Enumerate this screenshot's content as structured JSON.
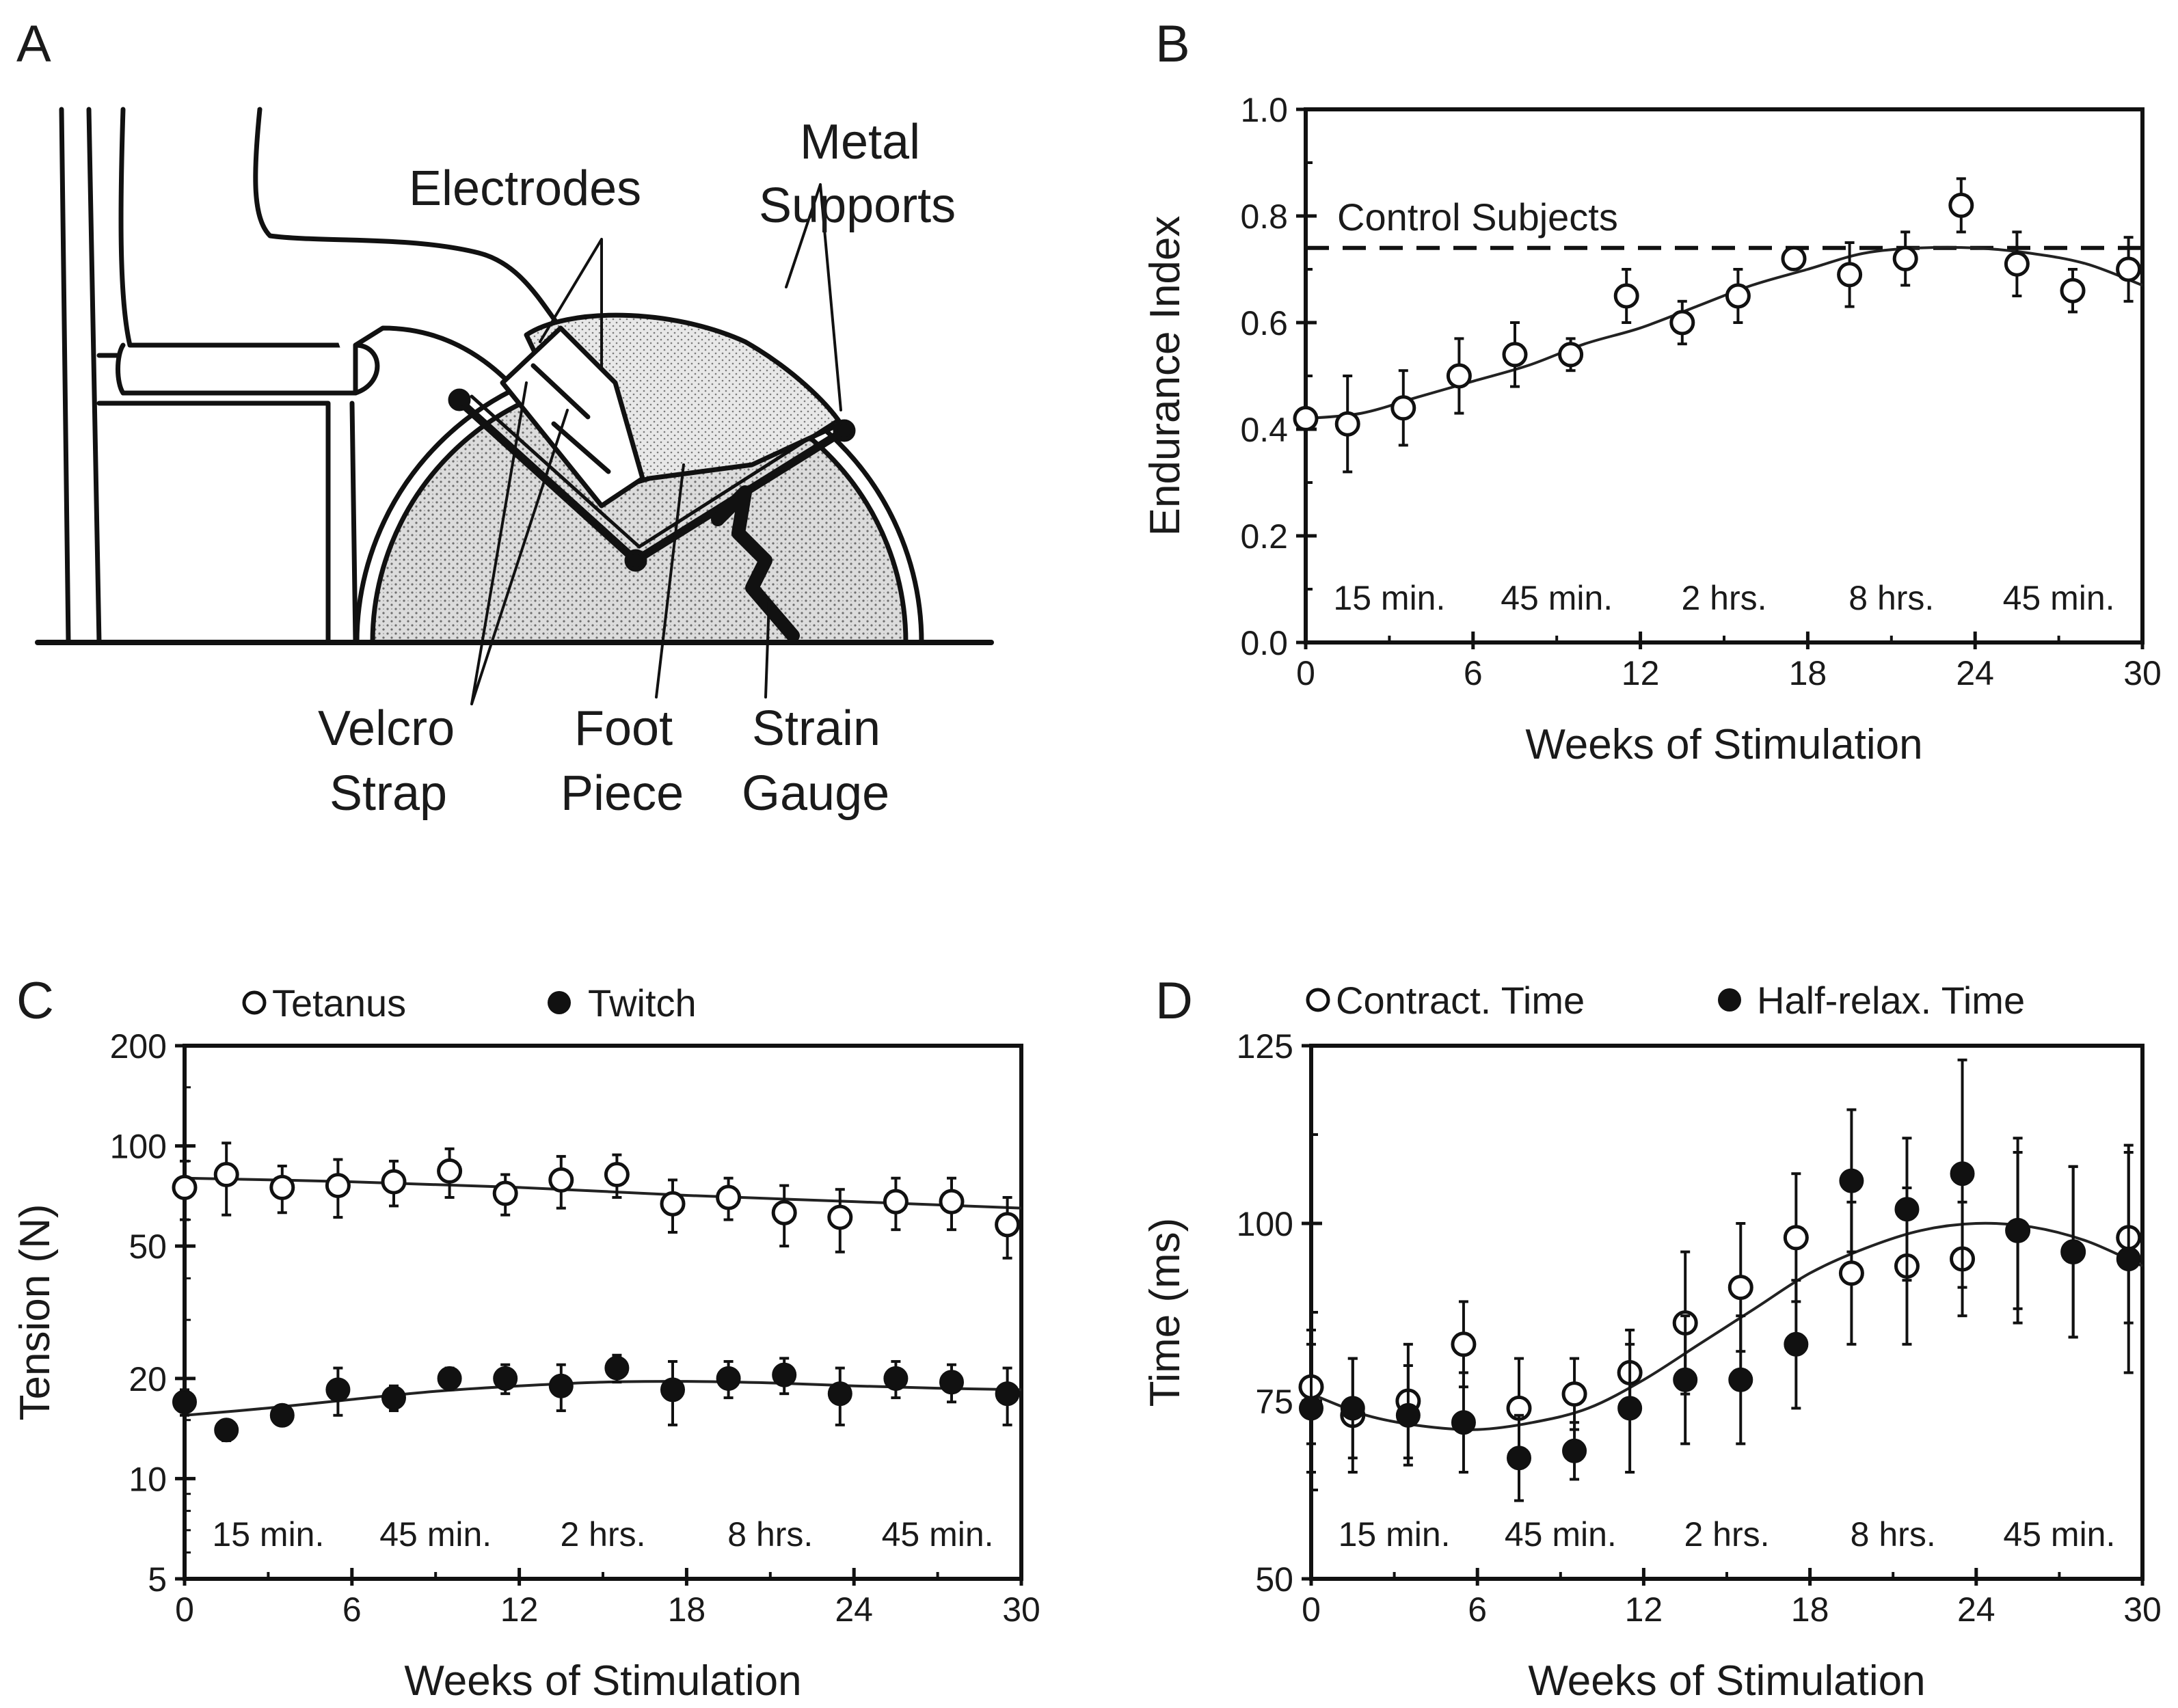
{
  "panel_a": {
    "letter": "A",
    "labels": {
      "metal_1": "Metal",
      "metal_2": "Supports",
      "electrodes": "Electrodes",
      "velcro_1": "Velcro",
      "velcro_2": "Strap",
      "foot_1": "Foot",
      "foot_2": "Piece",
      "strain_1": "Strain",
      "strain_2": "Gauge"
    }
  },
  "chart_data": [
    {
      "panel": "B",
      "type": "scatter",
      "xlabel": "Weeks of Stimulation",
      "ylabel": "Endurance Index",
      "xlim": [
        0,
        30
      ],
      "ylim": [
        0.0,
        1.0
      ],
      "xticks": [
        "0",
        "6",
        "12",
        "18",
        "24",
        "30"
      ],
      "yticks": [
        "0.0",
        "0.2",
        "0.4",
        "0.6",
        "0.8",
        "1.0"
      ],
      "phases": [
        "15 min.",
        "45 min.",
        "2 hrs.",
        "8 hrs.",
        "45 min."
      ],
      "reference": {
        "label": "Control Subjects",
        "y": 0.74
      },
      "series": [
        {
          "name": "Endurance Index",
          "marker": "open",
          "x": [
            0,
            1.5,
            3.5,
            5.5,
            7.5,
            9.5,
            11.5,
            13.5,
            15.5,
            17.5,
            19.5,
            21.5,
            23.5,
            25.5,
            27.5,
            29.5
          ],
          "y": [
            0.42,
            0.41,
            0.44,
            0.5,
            0.54,
            0.54,
            0.65,
            0.6,
            0.65,
            0.72,
            0.69,
            0.72,
            0.82,
            0.71,
            0.66,
            0.7
          ],
          "err": [
            0,
            0.09,
            0.07,
            0.07,
            0.06,
            0.03,
            0.05,
            0.04,
            0.05,
            0,
            0.06,
            0.05,
            0.05,
            0.06,
            0.04,
            0.06
          ]
        }
      ],
      "fit": {
        "x": [
          0,
          2,
          4,
          6,
          8,
          10,
          12,
          14,
          16,
          18,
          20,
          22,
          24,
          26,
          28,
          30
        ],
        "y": [
          0.42,
          0.43,
          0.46,
          0.49,
          0.52,
          0.56,
          0.59,
          0.63,
          0.67,
          0.7,
          0.73,
          0.74,
          0.74,
          0.73,
          0.71,
          0.67
        ]
      }
    },
    {
      "panel": "C",
      "type": "scatter",
      "xlabel": "Weeks of Stimulation",
      "ylabel": "Tension (N)",
      "yscale": "log",
      "xlim": [
        0,
        30
      ],
      "ylim": [
        5,
        200
      ],
      "xticks": [
        "0",
        "6",
        "12",
        "18",
        "24",
        "30"
      ],
      "yticks": [
        "5",
        "10",
        "20",
        "50",
        "100",
        "200"
      ],
      "phases": [
        "15 min.",
        "45 min.",
        "2 hrs.",
        "8 hrs.",
        "45 min."
      ],
      "series": [
        {
          "name": "Tetanus",
          "marker": "open",
          "x": [
            0,
            1.5,
            3.5,
            5.5,
            7.5,
            9.5,
            11.5,
            13.5,
            15.5,
            17.5,
            19.5,
            21.5,
            23.5,
            25.5,
            27.5,
            29.5
          ],
          "y": [
            75,
            82,
            75,
            76,
            78,
            84,
            72,
            79,
            82,
            67,
            70,
            63,
            61,
            68,
            68,
            58
          ],
          "err": [
            15,
            20,
            12,
            15,
            12,
            14,
            10,
            14,
            12,
            12,
            10,
            13,
            13,
            12,
            12,
            12
          ]
        },
        {
          "name": "Twitch",
          "marker": "filled",
          "x": [
            0,
            1.5,
            3.5,
            5.5,
            7.5,
            9.5,
            11.5,
            13.5,
            15.5,
            17.5,
            19.5,
            21.5,
            23.5,
            25.5,
            27.5,
            29.5
          ],
          "y": [
            17,
            14,
            15.5,
            18.5,
            17.5,
            20,
            20,
            19,
            21.5,
            18.5,
            20,
            20.5,
            18,
            20,
            19.5,
            18
          ],
          "err": [
            1.5,
            1,
            1,
            3,
            1.5,
            1.5,
            2,
            3,
            2,
            4,
            2.5,
            2.5,
            3.5,
            2.5,
            2.5,
            3.5
          ]
        }
      ],
      "fits": [
        {
          "name": "Tetanus fit",
          "x": [
            0,
            6,
            12,
            18,
            24,
            30
          ],
          "y": [
            80,
            78,
            75,
            71,
            68,
            65
          ]
        },
        {
          "name": "Twitch fit",
          "x": [
            0,
            3,
            6,
            9,
            12,
            15,
            18,
            21,
            24,
            27,
            30
          ],
          "y": [
            15.5,
            16.3,
            17.3,
            18.3,
            19.0,
            19.5,
            19.6,
            19.4,
            19.0,
            18.7,
            18.5
          ]
        }
      ]
    },
    {
      "panel": "D",
      "type": "scatter",
      "xlabel": "Weeks of Stimulation",
      "ylabel": "Time (ms)",
      "xlim": [
        0,
        30
      ],
      "ylim": [
        50,
        125
      ],
      "xticks": [
        "0",
        "6",
        "12",
        "18",
        "24",
        "30"
      ],
      "yticks": [
        "50",
        "75",
        "100",
        "125"
      ],
      "phases": [
        "15 min.",
        "45 min.",
        "2 hrs.",
        "8 hrs.",
        "45 min."
      ],
      "series": [
        {
          "name": "Contract. Time",
          "marker": "open",
          "x": [
            0,
            1.5,
            3.5,
            5.5,
            7.5,
            9.5,
            11.5,
            13.5,
            15.5,
            17.5,
            19.5,
            21.5,
            23.5,
            25.5,
            27.5,
            29.5
          ],
          "y": [
            77,
            73,
            75,
            83,
            74,
            76,
            79,
            86,
            91,
            98,
            93,
            94,
            95,
            99,
            96,
            98
          ],
          "err": [
            8,
            8,
            8,
            6,
            7,
            5,
            6,
            10,
            9,
            9,
            10,
            11,
            8,
            11,
            12,
            12
          ]
        },
        {
          "name": "Half-relax. Time",
          "marker": "filled",
          "x": [
            0,
            1.5,
            3.5,
            5.5,
            7.5,
            9.5,
            11.5,
            13.5,
            15.5,
            17.5,
            19.5,
            21.5,
            23.5,
            25.5,
            27.5,
            29.5
          ],
          "y": [
            74,
            74,
            73,
            72,
            67,
            68,
            74,
            78,
            78,
            83,
            106,
            102,
            107,
            99,
            96,
            95
          ],
          "err": [
            9,
            7,
            7,
            7,
            6,
            4,
            9,
            9,
            9,
            9,
            10,
            10,
            16,
            13,
            12,
            16
          ]
        }
      ],
      "fit": {
        "x": [
          0,
          2,
          4,
          6,
          8,
          10,
          12,
          14,
          16,
          18,
          20,
          22,
          24,
          26,
          28,
          30
        ],
        "y": [
          76,
          73,
          71.5,
          71,
          72,
          74,
          78,
          83,
          88,
          93,
          96.5,
          99,
          100,
          99.5,
          97.5,
          94
        ]
      }
    }
  ]
}
